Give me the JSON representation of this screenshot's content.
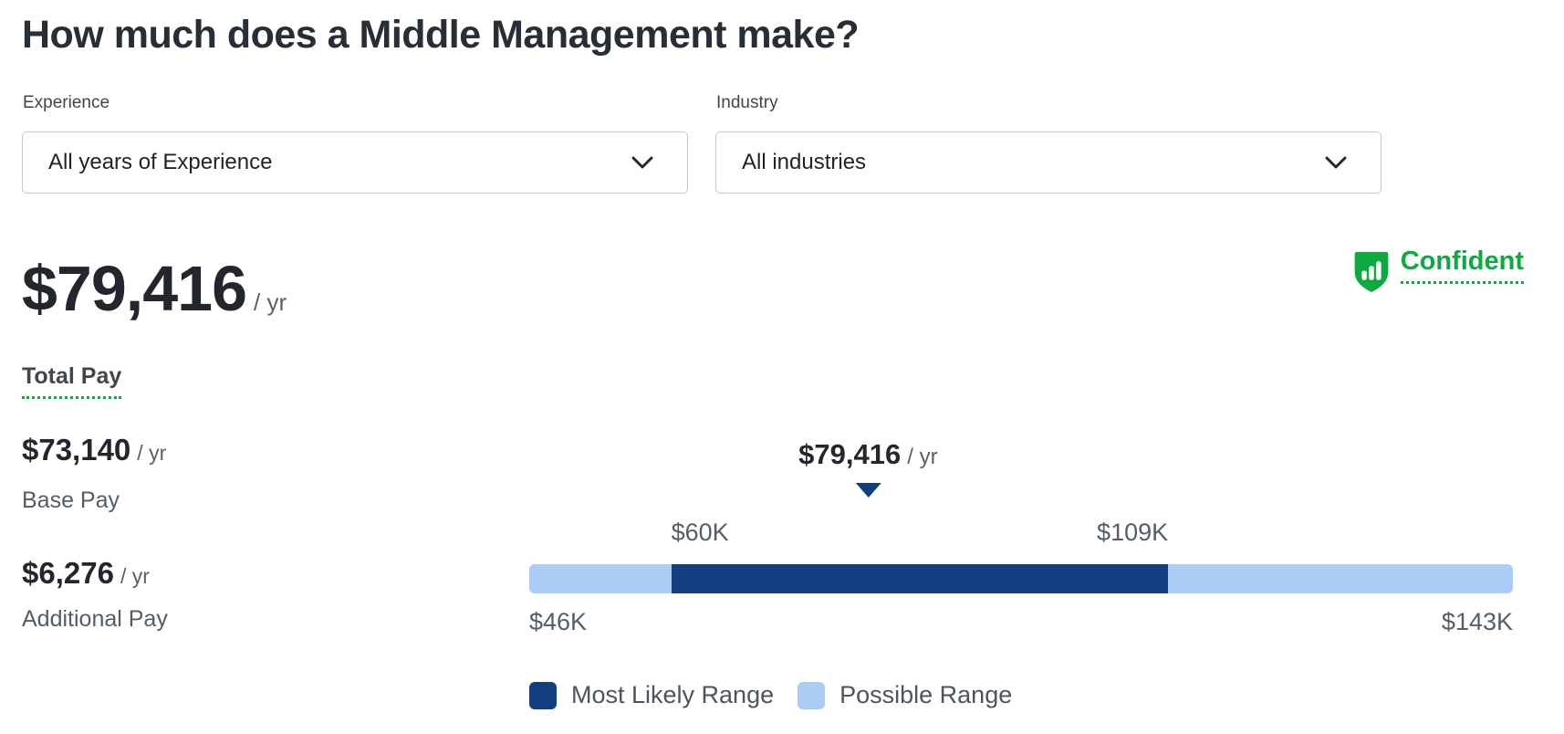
{
  "page": {
    "title": "How much does a Middle Management make?"
  },
  "filters": {
    "experience": {
      "label": "Experience",
      "value": "All years of Experience"
    },
    "industry": {
      "label": "Industry",
      "value": "All industries"
    }
  },
  "total_pay": {
    "amount": "$79,416",
    "suffix": "/ yr",
    "label": "Total Pay"
  },
  "confidence": {
    "label": "Confident",
    "icon": "shield-bar-chart-icon"
  },
  "breakdown": [
    {
      "amount": "$73,140",
      "suffix": "/ yr",
      "label": "Base Pay"
    },
    {
      "amount": "$6,276",
      "suffix": "/ yr",
      "label": "Additional Pay"
    }
  ],
  "chart_data": {
    "type": "bar",
    "kind": "salary-range-bar",
    "range_min": 46000,
    "range_max": 143000,
    "likely_min": 60000,
    "likely_max": 109000,
    "marker_value": 79416,
    "marker_label": "$79,416",
    "marker_suffix": "/ yr",
    "tick_labels": {
      "likely_min": "$60K",
      "likely_max": "$109K",
      "range_min": "$46K",
      "range_max": "$143K"
    },
    "legend": [
      {
        "label": "Most Likely Range",
        "color": "#113f7d"
      },
      {
        "label": "Possible Range",
        "color": "#abccf4"
      }
    ],
    "grid": false,
    "legend_position": "bottom-left"
  },
  "colors": {
    "accent_green": "#0caa41",
    "dark_blue": "#113f7d",
    "light_blue": "#abccf4",
    "heading_text": "#272e36",
    "secondary_text": "#565d66"
  }
}
